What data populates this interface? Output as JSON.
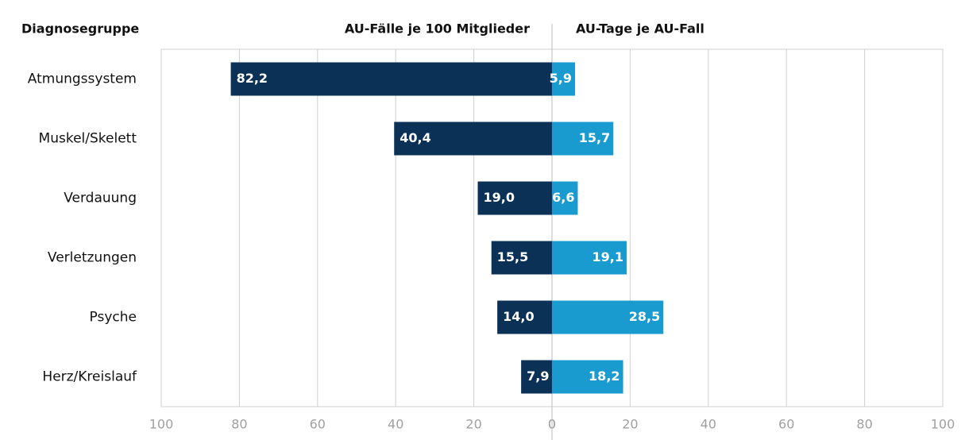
{
  "chart_data": {
    "type": "butterfly",
    "category_label": "Diagnosegruppe",
    "categories": [
      "Atmungssystem",
      "Muskel/Skelett",
      "Verdauung",
      "Verletzungen",
      "Psyche",
      "Herz/Kreislauf"
    ],
    "grid": true,
    "series": [
      {
        "name": "AU-Fälle je 100 Mitglieder",
        "color": "#0b3157",
        "values": [
          82.2,
          40.4,
          19.0,
          15.5,
          14.0,
          7.9
        ],
        "value_labels": [
          "82,2",
          "40,4",
          "19,0",
          "15,5",
          "14,0",
          "7,9"
        ],
        "xlim": [
          100,
          0
        ],
        "xticks": [
          100,
          80,
          60,
          40,
          20,
          0
        ]
      },
      {
        "name": "AU-Tage je AU-Fall",
        "color": "#1a9bd0",
        "values": [
          5.9,
          15.7,
          6.6,
          19.1,
          28.5,
          18.2
        ],
        "value_labels": [
          "5,9",
          "15,7",
          "6,6",
          "19,1",
          "28,5",
          "18,2"
        ],
        "xlim": [
          0,
          100
        ],
        "xticks": [
          0,
          20,
          40,
          60,
          80,
          100
        ]
      }
    ]
  }
}
